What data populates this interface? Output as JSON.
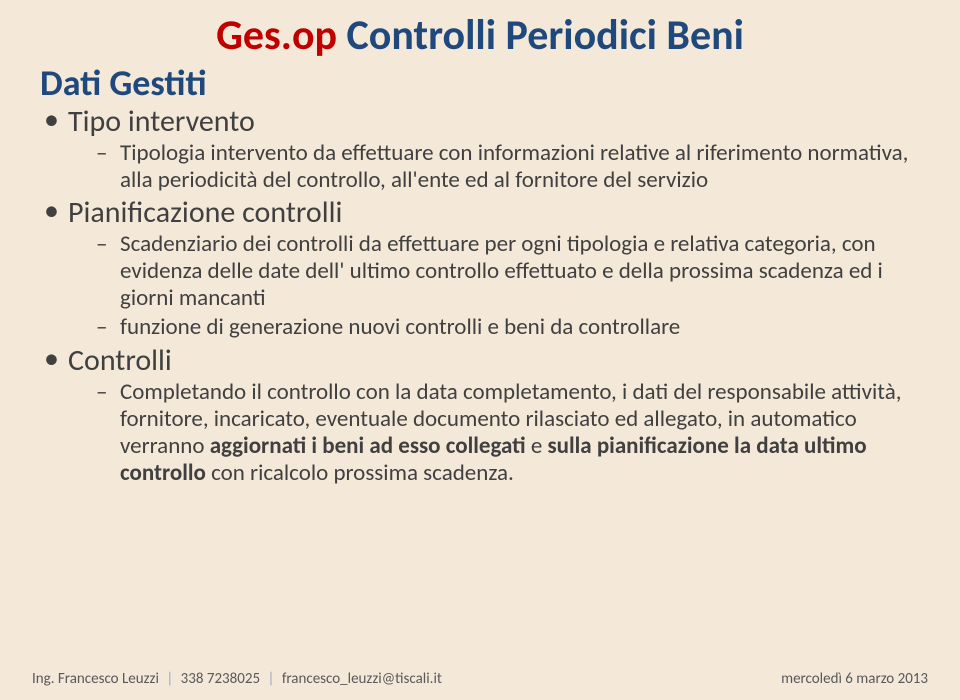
{
  "title": {
    "part1": "Ges.op",
    "part2": " Controlli Periodici Beni"
  },
  "subheader": "Dati Gestiti",
  "bullets": [
    {
      "label": "Tipo intervento",
      "sub": [
        {
          "segments": [
            {
              "t": "Tipologia intervento da effettuare con informazioni relative al riferimento normativa, alla periodicità del controllo, all'ente ed al fornitore del servizio",
              "b": false
            }
          ]
        }
      ]
    },
    {
      "label": "Pianificazione controlli",
      "sub": [
        {
          "segments": [
            {
              "t": "Scadenziario dei controlli da effettuare per ogni tipologia e relativa categoria, con evidenza delle date dell' ultimo controllo effettuato e della prossima scadenza ed  i giorni mancanti",
              "b": false
            }
          ]
        },
        {
          "segments": [
            {
              "t": "funzione di generazione nuovi controlli e beni da controllare",
              "b": false
            }
          ]
        }
      ]
    },
    {
      "label": "Controlli",
      "sub": [
        {
          "segments": [
            {
              "t": "Completando il controllo con la data completamento,  i dati del responsabile attività,  fornitore, incaricato, eventuale documento rilasciato ed allegato, in automatico verranno ",
              "b": false
            },
            {
              "t": "aggiornati i beni ad esso collegati ",
              "b": true
            },
            {
              "t": " e ",
              "b": false
            },
            {
              "t": "sulla pianificazione la data ultimo controllo ",
              "b": true
            },
            {
              "t": "con ricalcolo prossima scadenza.",
              "b": false
            }
          ]
        }
      ]
    }
  ],
  "footer": {
    "left": {
      "name": "Ing. Francesco Leuzzi",
      "phone": "338 7238025",
      "email": "francesco_leuzzi@tiscali.it"
    },
    "right": "mercoledì  6 marzo 2013"
  },
  "colors": {
    "bg": "#f4e8d8",
    "red": "#c00000",
    "blue": "#1f497d",
    "body": "#404040",
    "footer": "#595959"
  }
}
